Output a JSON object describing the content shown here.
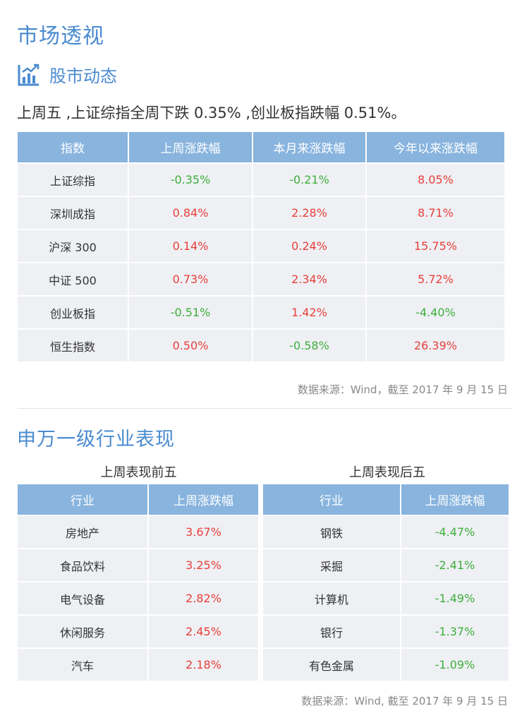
{
  "page": {
    "title": "市场透视",
    "section1_title": "股市动态",
    "summary": "上周五 ,上证综指全周下跌 0.35% ,创业板指跌幅 0.51%。",
    "source1": "数据来源：Wind，截至 2017 年 9 月 15 日",
    "section2_title": "申万一级行业表现",
    "source2": "数据来源：Wind, 截至 2017 年 9 月 15 日"
  },
  "index_table": {
    "headers": [
      "指数",
      "上周涨跌幅",
      "本月来涨跌幅",
      "今年以来涨跌幅"
    ],
    "rows": [
      {
        "name": "上证综指",
        "week": "-0.35%",
        "month": "-0.21%",
        "ytd": "8.05%"
      },
      {
        "name": "深圳成指",
        "week": "0.84%",
        "month": "2.28%",
        "ytd": "8.71%"
      },
      {
        "name": "沪深 300",
        "week": "0.14%",
        "month": "0.24%",
        "ytd": "15.75%"
      },
      {
        "name": "中证 500",
        "week": "0.73%",
        "month": "2.34%",
        "ytd": "5.72%"
      },
      {
        "name": "创业板指",
        "week": "-0.51%",
        "month": "1.42%",
        "ytd": "-4.40%"
      },
      {
        "name": "恒生指数",
        "week": "0.50%",
        "month": "-0.58%",
        "ytd": "26.39%"
      }
    ]
  },
  "top5": {
    "caption": "上周表现前五",
    "headers": [
      "行业",
      "上周涨跌幅"
    ],
    "rows": [
      {
        "name": "房地产",
        "change": "3.67%"
      },
      {
        "name": "食品饮料",
        "change": "3.25%"
      },
      {
        "name": "电气设备",
        "change": "2.82%"
      },
      {
        "name": "休闲服务",
        "change": "2.45%"
      },
      {
        "name": "汽车",
        "change": "2.18%"
      }
    ]
  },
  "bottom5": {
    "caption": "上周表现后五",
    "headers": [
      "行业",
      "上周涨跌幅"
    ],
    "rows": [
      {
        "name": "钢铁",
        "change": "-4.47%"
      },
      {
        "name": "采掘",
        "change": "-2.41%"
      },
      {
        "name": "计算机",
        "change": "-1.49%"
      },
      {
        "name": "银行",
        "change": "-1.37%"
      },
      {
        "name": "有色金属",
        "change": "-1.09%"
      }
    ]
  },
  "colors": {
    "accent": "#4a8bd0",
    "header_bg": "#88b4de",
    "cell_bg": "#eef0f4",
    "up": "#e8403a",
    "down": "#3fae3a"
  },
  "icons": {
    "section1": "bar-chart-trend-icon"
  }
}
